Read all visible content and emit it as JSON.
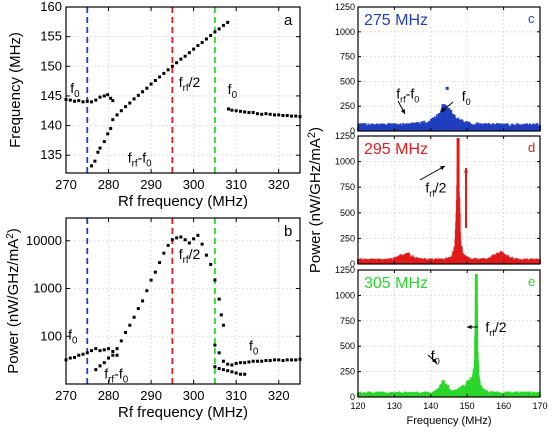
{
  "chart_data": [
    {
      "id": "a",
      "type": "scatter",
      "panel_label": "a",
      "xlabel": "Rf frequency (MHz)",
      "ylabel": "Frequency (MHz)",
      "xlim": [
        270,
        325
      ],
      "ylim": [
        132,
        160
      ],
      "xticks": [
        270,
        280,
        290,
        300,
        310,
        320
      ],
      "yticks": [
        135,
        140,
        145,
        150,
        155,
        160
      ],
      "vlines": [
        {
          "x": 275,
          "color": "#1f3fbf"
        },
        {
          "x": 295,
          "color": "#e01b1b"
        },
        {
          "x": 305,
          "color": "#2bd62b"
        }
      ],
      "annotations": [
        {
          "text": "f",
          "sub": "0",
          "x": 271,
          "y": 145.5
        },
        {
          "text": "f",
          "sub": "rf",
          "tail": "/2",
          "x": 296.5,
          "y": 146.5
        },
        {
          "text": "f",
          "sub": "0",
          "x": 308,
          "y": 145.3
        },
        {
          "text": "f",
          "sub": "rf",
          "tail": "-f",
          "sub2": "0",
          "x": 284.5,
          "y": 133.8
        }
      ],
      "series": [
        {
          "points": [
            [
              270,
              144.4
            ],
            [
              271,
              144.3
            ],
            [
              272,
              144.1
            ],
            [
              273,
              144.2
            ],
            [
              274,
              144.0
            ],
            [
              275,
              144.1
            ],
            [
              276,
              144.0
            ],
            [
              277,
              144.3
            ],
            [
              278,
              144.8
            ],
            [
              279,
              145.0
            ],
            [
              279.8,
              145.2
            ],
            [
              280.5,
              144.6
            ],
            [
              281,
              144.2
            ]
          ]
        },
        {
          "points": [
            [
              276,
              133.2
            ],
            [
              276.8,
              134.0
            ],
            [
              277.5,
              135.5
            ],
            [
              278,
              136.2
            ],
            [
              279,
              137.3
            ],
            [
              279.8,
              138.6
            ],
            [
              280.5,
              139.5
            ]
          ]
        },
        {
          "points": [
            [
              281,
              141.0
            ],
            [
              282,
              141.8
            ],
            [
              283,
              142.5
            ],
            [
              284,
              143.2
            ],
            [
              285,
              143.8
            ],
            [
              286,
              144.5
            ],
            [
              287,
              145.1
            ],
            [
              288,
              145.7
            ],
            [
              289,
              146.3
            ],
            [
              290,
              147.0
            ],
            [
              291,
              147.6
            ],
            [
              292,
              148.2
            ],
            [
              293,
              148.8
            ],
            [
              294,
              149.4
            ],
            [
              295,
              150.0
            ],
            [
              296,
              150.6
            ],
            [
              297,
              151.2
            ],
            [
              298,
              151.7
            ],
            [
              299,
              152.3
            ],
            [
              300,
              152.9
            ],
            [
              301,
              153.5
            ],
            [
              302,
              154.0
            ],
            [
              303,
              154.6
            ],
            [
              304,
              155.2
            ],
            [
              305,
              155.8
            ],
            [
              306,
              156.3
            ],
            [
              307,
              156.9
            ],
            [
              308,
              157.4
            ]
          ]
        },
        {
          "points": [
            [
              308.2,
              142.8
            ],
            [
              309,
              142.6
            ],
            [
              310,
              142.5
            ],
            [
              311,
              142.4
            ],
            [
              312,
              142.3
            ],
            [
              313,
              142.2
            ],
            [
              314,
              142.2
            ],
            [
              315,
              142.0
            ],
            [
              316,
              141.9
            ],
            [
              317,
              142.0
            ],
            [
              318,
              141.9
            ],
            [
              319,
              141.8
            ],
            [
              320,
              141.8
            ],
            [
              321,
              141.7
            ],
            [
              322,
              141.7
            ],
            [
              323,
              141.6
            ],
            [
              324,
              141.6
            ],
            [
              325,
              141.5
            ]
          ]
        }
      ]
    },
    {
      "id": "b",
      "type": "scatter",
      "panel_label": "b",
      "xlabel": "Rf frequency (MHz)",
      "ylabel": "Power (nW/GHz/mA²)",
      "ylabel_base": "Power (nW/GHz/mA",
      "ylabel_sup": "2",
      "ylabel_tail": ")",
      "xlim": [
        270,
        325
      ],
      "ylim": [
        10,
        30000
      ],
      "yscale": "log",
      "xticks": [
        270,
        280,
        290,
        300,
        310,
        320
      ],
      "yticks": [
        100,
        1000,
        10000
      ],
      "vlines": [
        {
          "x": 275,
          "color": "#1f3fbf"
        },
        {
          "x": 295,
          "color": "#e01b1b"
        },
        {
          "x": 305,
          "color": "#2bd62b"
        }
      ],
      "annotations": [
        {
          "text": "f",
          "sub": "0",
          "x": 270.5,
          "y": 85
        },
        {
          "text": "f",
          "sub": "rf",
          "tail": "/2",
          "x": 296.5,
          "y": 4200
        },
        {
          "text": "f",
          "sub": "0",
          "x": 313,
          "y": 50
        },
        {
          "text": "f",
          "sub": "rf",
          "tail": "-f",
          "sub2": "0",
          "x": 279,
          "y": 13
        }
      ],
      "series": [
        {
          "points": [
            [
              270,
              32
            ],
            [
              271,
              35
            ],
            [
              272,
              36
            ],
            [
              273,
              40
            ],
            [
              274,
              42
            ],
            [
              275,
              45
            ],
            [
              276,
              50
            ],
            [
              277,
              55
            ],
            [
              278,
              50
            ],
            [
              279,
              52
            ],
            [
              280,
              55
            ],
            [
              281,
              48
            ],
            [
              282,
              40
            ]
          ]
        },
        {
          "points": [
            [
              277,
              20
            ],
            [
              278,
              24
            ],
            [
              279,
              28
            ],
            [
              280,
              35
            ],
            [
              281,
              40
            ],
            [
              282,
              55
            ],
            [
              283,
              80
            ],
            [
              284,
              120
            ],
            [
              285,
              170
            ],
            [
              286,
              250
            ],
            [
              287,
              380
            ],
            [
              288,
              550
            ],
            [
              289,
              900
            ],
            [
              290,
              1500
            ],
            [
              291,
              2200
            ],
            [
              292,
              3500
            ],
            [
              293,
              5500
            ],
            [
              294,
              8000
            ],
            [
              295,
              10500
            ],
            [
              296,
              11500
            ],
            [
              297,
              12000
            ],
            [
              298,
              10500
            ],
            [
              299,
              9000
            ],
            [
              300,
              11000
            ],
            [
              301,
              13000
            ],
            [
              302,
              8500
            ],
            [
              303,
              5000
            ],
            [
              304,
              3200
            ],
            [
              305,
              1500
            ],
            [
              306,
              600
            ],
            [
              306.5,
              280
            ],
            [
              307,
              170
            ]
          ]
        },
        {
          "points": [
            [
              305,
              65
            ],
            [
              306,
              45
            ],
            [
              307,
              30
            ],
            [
              308,
              26
            ],
            [
              309,
              25
            ],
            [
              310,
              27
            ],
            [
              311,
              28
            ],
            [
              312,
              28
            ],
            [
              313,
              29
            ],
            [
              314,
              30
            ],
            [
              315,
              30
            ],
            [
              316,
              30
            ],
            [
              317,
              31
            ],
            [
              318,
              31
            ],
            [
              319,
              32
            ],
            [
              320,
              32
            ],
            [
              321,
              31
            ],
            [
              322,
              32
            ],
            [
              323,
              32
            ],
            [
              324,
              32
            ],
            [
              325,
              33
            ]
          ]
        },
        {
          "points": [
            [
              305,
              23
            ],
            [
              306,
              21
            ],
            [
              307,
              20
            ],
            [
              308,
              19
            ],
            [
              309,
              18
            ],
            [
              310,
              17
            ],
            [
              311,
              16
            ],
            [
              312,
              16
            ]
          ]
        }
      ]
    },
    {
      "id": "c",
      "type": "scatter",
      "panel_label": "c",
      "title": "275 MHz",
      "color": "#1f3fbf",
      "xlim": [
        120,
        170
      ],
      "ylim": [
        0,
        1250
      ],
      "yticks": [
        0,
        250,
        500,
        750,
        1000,
        1250
      ],
      "xticks": [
        120,
        130,
        140,
        150,
        160,
        170
      ],
      "annotations": [
        {
          "text": "f",
          "sub": "rf",
          "tail": "-f",
          "sub2": "0",
          "x": 130.5,
          "y": 330
        },
        {
          "text": "f",
          "sub": "0",
          "x": 148.5,
          "y": 300
        }
      ],
      "peak": {
        "x": 144.0,
        "height": 230,
        "width": 2.2
      },
      "baseline": 45,
      "outlier": [
        144.5,
        430
      ]
    },
    {
      "id": "d",
      "type": "scatter",
      "panel_label": "d",
      "title": "295 MHz",
      "color": "#e01b1b",
      "xlim": [
        120,
        170
      ],
      "ylim": [
        0,
        1250
      ],
      "yticks": [
        0,
        250,
        500,
        750,
        1000,
        1250
      ],
      "xticks": [
        120,
        130,
        140,
        150,
        160,
        170
      ],
      "annotations": [
        {
          "text": "f",
          "sub": "rf",
          "tail": "/2",
          "x": 138.5,
          "y": 700
        }
      ],
      "peak": {
        "x": 147.5,
        "height": 1230,
        "width": 0.35
      },
      "baseline": 30,
      "humps": [
        {
          "x": 133,
          "h": 70,
          "w": 2.5
        },
        {
          "x": 159,
          "h": 85,
          "w": 2.5
        }
      ]
    },
    {
      "id": "e",
      "type": "scatter",
      "panel_label": "e",
      "title": "305 MHz",
      "color": "#2bd62b",
      "xlabel": "Frequency (MHz)",
      "xlim": [
        120,
        170
      ],
      "ylim": [
        0,
        1250
      ],
      "yticks": [
        0,
        250,
        500,
        750,
        1000,
        1250
      ],
      "xticks": [
        120,
        130,
        140,
        150,
        160,
        170
      ],
      "annotations": [
        {
          "text": "f",
          "sub": "rf",
          "tail": "/2",
          "x": 155,
          "y": 640
        },
        {
          "text": "f",
          "sub": "0",
          "x": 140,
          "y": 360
        }
      ],
      "peak": {
        "x": 152.5,
        "height": 1210,
        "width": 0.3
      },
      "baseline": 30,
      "humps": [
        {
          "x": 143.5,
          "h": 120,
          "w": 1.6
        },
        {
          "x": 150.5,
          "h": 110,
          "w": 2.8
        }
      ]
    }
  ],
  "shared_ylabel": {
    "base": "Power (nW/GHz/mA",
    "sup": "2",
    "tail": ")"
  }
}
